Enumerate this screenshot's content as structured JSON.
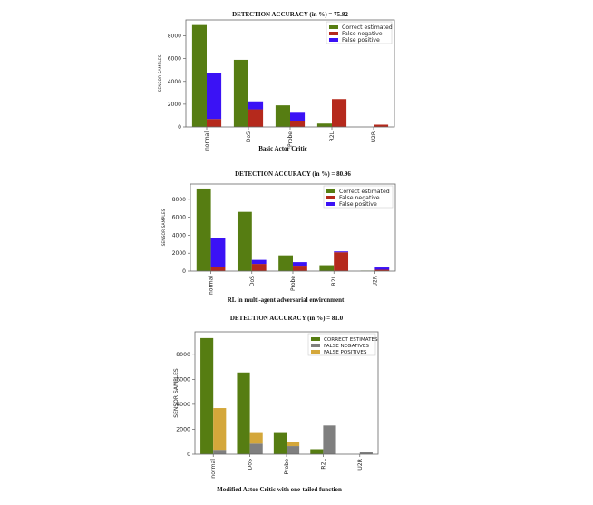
{
  "chart_data": [
    {
      "type": "bar",
      "stacked_second_bar": true,
      "title": "DETECTION ACCURACY (in %) = 75.82",
      "caption": "Basic Actor Critic",
      "xlabel": "",
      "ylabel": "SENSOR SAMPLES",
      "ylim": [
        0,
        9400
      ],
      "yticks": [
        "0",
        "2000",
        "4000",
        "6000",
        "8000"
      ],
      "categories": [
        "normal",
        "DoS",
        "Probe",
        "R2L",
        "U2R"
      ],
      "legend_position": "top-right",
      "series": [
        {
          "name": "Correct estimated",
          "color": "#567d12",
          "values": [
            8950,
            5900,
            1900,
            300,
            0
          ]
        },
        {
          "name": "False negative",
          "color": "#b5291c",
          "values": [
            700,
            1550,
            500,
            2450,
            200
          ]
        },
        {
          "name": "False positive",
          "color": "#3b12f5",
          "values": [
            4050,
            700,
            750,
            0,
            0
          ]
        }
      ]
    },
    {
      "type": "bar",
      "stacked_second_bar": true,
      "title": "DETECTION ACCURACY (in %) = 80.96",
      "caption": "RL in multi-agent adversarial environment",
      "xlabel": "",
      "ylabel": "SENSOR SAMPLES",
      "ylim": [
        0,
        9700
      ],
      "yticks": [
        "0",
        "2000",
        "4000",
        "6000",
        "8000"
      ],
      "categories": [
        "normal",
        "DoS",
        "Probe",
        "R2L",
        "U2R"
      ],
      "legend_position": "top-right",
      "series": [
        {
          "name": "Correct estimated",
          "color": "#567d12",
          "values": [
            9200,
            6600,
            1750,
            650,
            50
          ]
        },
        {
          "name": "False negative",
          "color": "#b5291c",
          "values": [
            500,
            800,
            600,
            2100,
            150
          ]
        },
        {
          "name": "False positive",
          "color": "#3b12f5",
          "values": [
            3150,
            450,
            400,
            100,
            250
          ]
        }
      ]
    },
    {
      "type": "bar",
      "stacked_second_bar": true,
      "title": "DETECTION ACCURACY (in %) = 81.0",
      "caption": "Modified Actor Critic with one-tailed function",
      "xlabel": "",
      "ylabel": "SENSOR SAMPLES",
      "ylim": [
        0,
        9800
      ],
      "yticks": [
        "0",
        "2000",
        "4000",
        "6000",
        "8000"
      ],
      "categories": [
        "normal",
        "DoS",
        "Probe",
        "R2L",
        "U2R"
      ],
      "legend_position": "top-right",
      "series": [
        {
          "name": "CORRECT ESTIMATES",
          "color": "#567d12",
          "values": [
            9300,
            6550,
            1700,
            400,
            0
          ]
        },
        {
          "name": "FALSE NEGATIVES",
          "color": "#7f7f7f",
          "values": [
            350,
            850,
            650,
            2300,
            180
          ]
        },
        {
          "name": "FALSE POSITIVES",
          "color": "#d4a73a",
          "values": [
            3350,
            850,
            300,
            0,
            0
          ]
        }
      ]
    }
  ]
}
